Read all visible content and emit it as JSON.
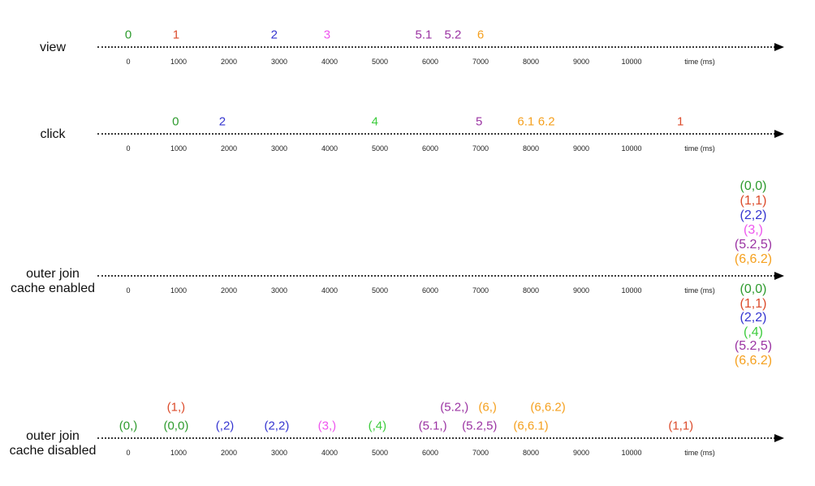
{
  "diagram_type": "marble-timeline-diagram",
  "colors": {
    "green": "#2E9B2E",
    "green_bright": "#3DCC3D",
    "red": "#DC4B2B",
    "blue": "#3636D0",
    "magenta": "#EE55EE",
    "purple": "#9B34A3",
    "orange": "#F5A01E",
    "axis_text": "#222222",
    "label_text": "#111111",
    "line": "#3c3c3c"
  },
  "axis": {
    "ticks": [
      "0",
      "1000",
      "2000",
      "3000",
      "4000",
      "5000",
      "6000",
      "7000",
      "8000",
      "9000",
      "10000"
    ],
    "tick_interval_ms": 1000,
    "unit_label": "time (ms)"
  },
  "timelines": [
    {
      "id": "view",
      "label_lines": [
        "view"
      ],
      "events": [
        {
          "text": "0",
          "color": "green",
          "t": 0
        },
        {
          "text": "1",
          "color": "red",
          "t": 950
        },
        {
          "text": "2",
          "color": "blue",
          "t": 2900
        },
        {
          "text": "3",
          "color": "magenta",
          "t": 3950
        },
        {
          "text": "5.1",
          "color": "purple",
          "t": 5870
        },
        {
          "text": "5.2",
          "color": "purple",
          "t": 6450
        },
        {
          "text": "6",
          "color": "orange",
          "t": 7000
        }
      ]
    },
    {
      "id": "click",
      "label_lines": [
        "click"
      ],
      "events": [
        {
          "text": "0",
          "color": "green",
          "t": 940
        },
        {
          "text": "2",
          "color": "blue",
          "t": 1870
        },
        {
          "text": "4",
          "color": "green_bright",
          "t": 4900
        },
        {
          "text": "5",
          "color": "purple",
          "t": 6970
        },
        {
          "text": "6.1",
          "color": "orange",
          "t": 7900
        },
        {
          "text": "6.2",
          "color": "orange",
          "t": 8310
        },
        {
          "text": "1",
          "color": "red",
          "t": 10970
        }
      ]
    },
    {
      "id": "join_cache_enabled",
      "label_lines": [
        "outer join",
        "cache enabled"
      ],
      "events": [],
      "stack_above": [
        {
          "text": "(0,0)",
          "color": "green"
        },
        {
          "text": "(1,1)",
          "color": "red"
        },
        {
          "text": "(2,2)",
          "color": "blue"
        },
        {
          "text": "(3,)",
          "color": "magenta"
        },
        {
          "text": "(5.2,5)",
          "color": "purple"
        },
        {
          "text": "(6,6.2)",
          "color": "orange"
        }
      ],
      "stack_below": [
        {
          "text": "(0,0)",
          "color": "green"
        },
        {
          "text": "(1,1)",
          "color": "red"
        },
        {
          "text": "(2,2)",
          "color": "blue"
        },
        {
          "text": "(,4)",
          "color": "green_bright"
        },
        {
          "text": "(5.2,5)",
          "color": "purple"
        },
        {
          "text": "(6,6.2)",
          "color": "orange"
        }
      ]
    },
    {
      "id": "join_cache_disabled",
      "label_lines": [
        "outer join",
        "cache disabled"
      ],
      "events": [
        {
          "text": "(0,)",
          "color": "green",
          "t": 0,
          "row": 0
        },
        {
          "text": "(1,)",
          "color": "red",
          "t": 950,
          "row": 1
        },
        {
          "text": "(0,0)",
          "color": "green",
          "t": 950,
          "row": 0
        },
        {
          "text": "(,2)",
          "color": "blue",
          "t": 1920,
          "row": 0
        },
        {
          "text": "(2,2)",
          "color": "blue",
          "t": 2950,
          "row": 0
        },
        {
          "text": "(3,)",
          "color": "magenta",
          "t": 3950,
          "row": 0
        },
        {
          "text": "(,4)",
          "color": "green_bright",
          "t": 4950,
          "row": 0
        },
        {
          "text": "(5.1,)",
          "color": "purple",
          "t": 6050,
          "row": 0
        },
        {
          "text": "(5.2,)",
          "color": "purple",
          "t": 6480,
          "row": 1
        },
        {
          "text": "(5.2,5)",
          "color": "purple",
          "t": 6980,
          "row": 0
        },
        {
          "text": "(6,)",
          "color": "orange",
          "t": 7140,
          "row": 1
        },
        {
          "text": "(6,6.1)",
          "color": "orange",
          "t": 8000,
          "row": 0
        },
        {
          "text": "(6,6.2)",
          "color": "orange",
          "t": 8340,
          "row": 1
        },
        {
          "text": "(1,1)",
          "color": "red",
          "t": 10980,
          "row": 0
        }
      ]
    }
  ]
}
